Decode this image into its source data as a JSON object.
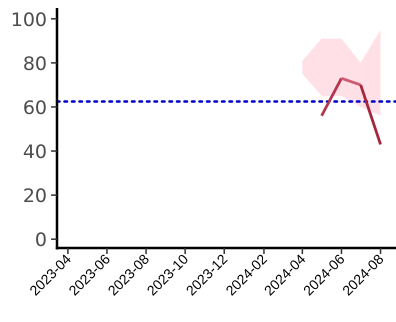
{
  "chart_data": {
    "type": "line",
    "title": "",
    "xlabel": "",
    "ylabel": "",
    "x_ticks": [
      "2023-04",
      "2023-06",
      "2023-08",
      "2023-10",
      "2023-12",
      "2024-02",
      "2024-04",
      "2024-06",
      "2024-08"
    ],
    "xlim": [
      "2023-03-15",
      "2024-08-22"
    ],
    "y_ticks": [
      0,
      20,
      40,
      60,
      80,
      100
    ],
    "ylim": [
      -4,
      104
    ],
    "grid": false,
    "legend": "none",
    "reference_line": {
      "value": 62.5,
      "style": "dotted",
      "color": "#0000cc"
    },
    "band": {
      "color": "#ffe0e6",
      "x": [
        "2024-04-01",
        "2024-05-01",
        "2024-06-01",
        "2024-07-01",
        "2024-08-01"
      ],
      "upper": [
        81,
        91,
        91,
        80,
        95
      ],
      "lower": [
        75,
        65,
        65,
        60,
        56
      ]
    },
    "series": [
      {
        "color_start": "#a3243b",
        "color_end": "#d4607a",
        "x": [
          "2024-05-01",
          "2024-06-01",
          "2024-07-01",
          "2024-08-01"
        ],
        "values": [
          56,
          73,
          70,
          43
        ]
      }
    ]
  }
}
